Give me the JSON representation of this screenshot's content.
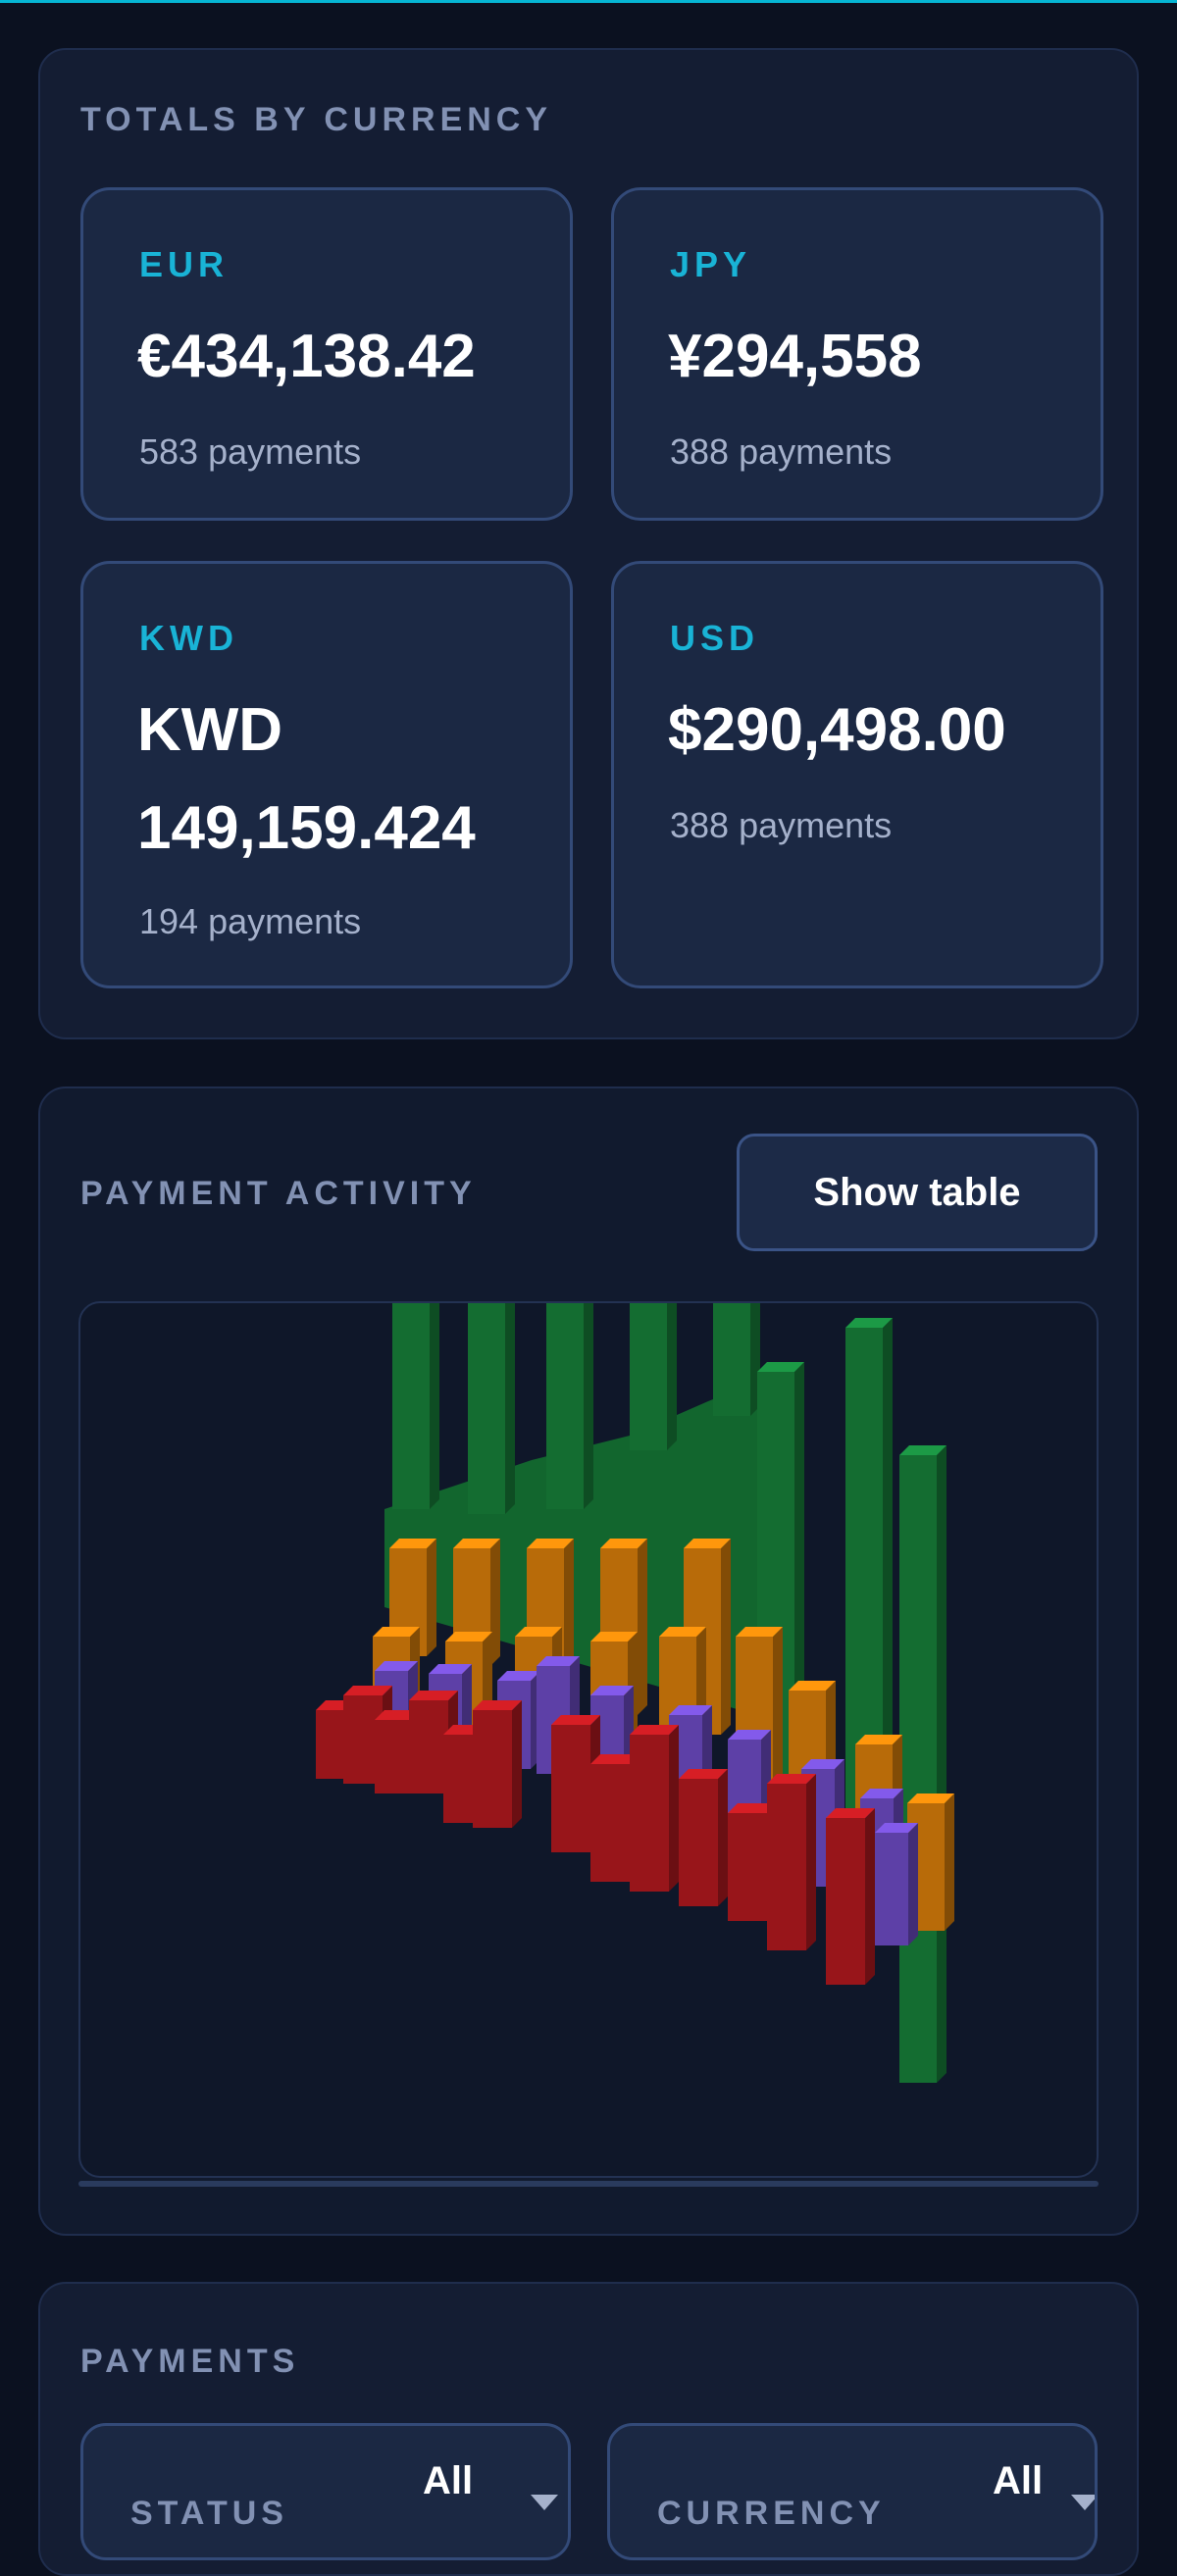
{
  "totals": {
    "title": "TOTALS BY CURRENCY",
    "cards": [
      {
        "code": "EUR",
        "amount": "€434,138.42",
        "count": "583 payments"
      },
      {
        "code": "JPY",
        "amount": "¥294,558",
        "count": "388 payments"
      },
      {
        "code": "KWD",
        "amount": "KWD 149,159.424",
        "count": "194 payments"
      },
      {
        "code": "USD",
        "amount": "$290,498.00",
        "count": "388 payments"
      }
    ]
  },
  "activity": {
    "title": "PAYMENT ACTIVITY",
    "show_table_label": "Show table",
    "colors": {
      "usd": "#17803a",
      "eur": "#d97e0a",
      "jpy": "#6d4bc4",
      "kwd": "#b3191f"
    }
  },
  "payments": {
    "title": "PAYMENTS",
    "filters": [
      {
        "label": "STATUS",
        "value": "All"
      },
      {
        "label": "CURRENCY",
        "value": "All"
      }
    ]
  }
}
